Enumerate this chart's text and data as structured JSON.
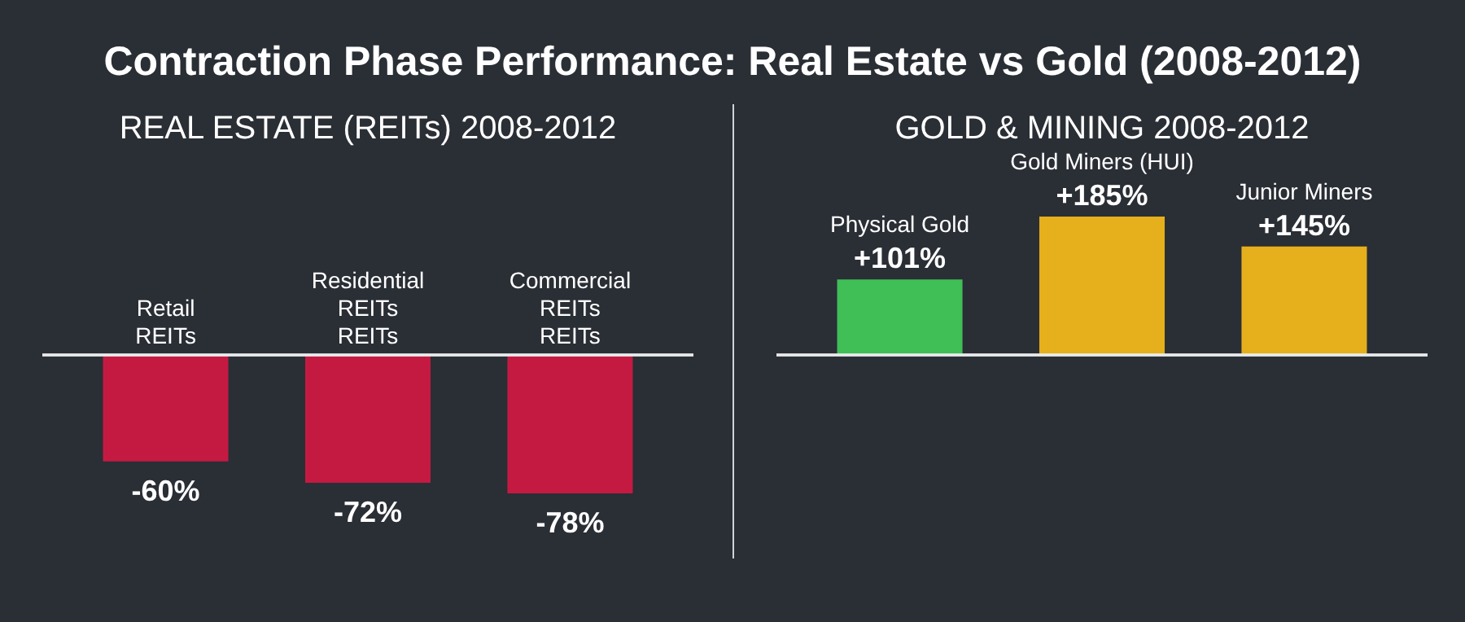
{
  "chart_data": [
    {
      "type": "bar",
      "title": "Contraction Phase Performance: Real Estate vs Gold (2008-2012)",
      "subtitle": "REAL ESTATE (REITs) 2008-2012",
      "categories": [
        "Retail\nREITs",
        "Residential\nREITs\nREITs",
        "Commercial\nREITs\nREITs"
      ],
      "values": [
        -60,
        -72,
        -78
      ],
      "colors": [
        "#c41a42",
        "#c41a42",
        "#c41a42"
      ],
      "value_labels": [
        "-60%",
        "-72%",
        "-78%"
      ]
    },
    {
      "type": "bar",
      "subtitle": "GOLD & MINING 2008-2012",
      "categories": [
        "Physical Gold",
        "Gold Miners (HUI)",
        "Junior Miners"
      ],
      "values": [
        101,
        185,
        145
      ],
      "colors": [
        "#3fbf55",
        "#e6b01c",
        "#e6b01c"
      ],
      "value_labels": [
        "+101%",
        "+185%",
        "+145%"
      ]
    }
  ]
}
